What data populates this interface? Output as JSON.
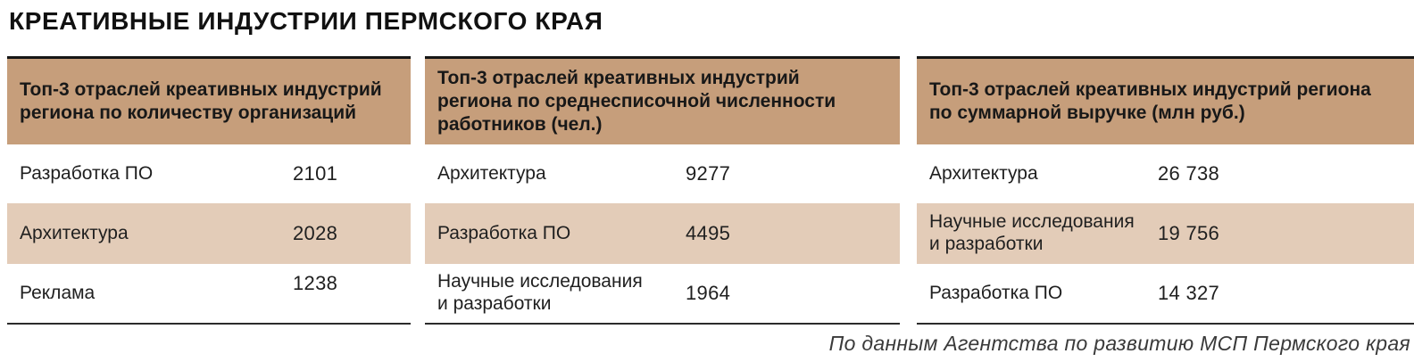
{
  "title": "КРЕАТИВНЫЕ ИНДУСТРИИ ПЕРМСКОГО КРАЯ",
  "colors": {
    "header_band": "#c69e7b",
    "highlight_row": "#e3ccb8",
    "rule_line": "#161616",
    "text": "#1c1c1c"
  },
  "panels": [
    {
      "header": "Топ-3 отраслей креативных индустрий\nрегиона по количеству организаций",
      "rows": [
        {
          "label": "Разработка ПО",
          "value": "2101",
          "highlighted": false
        },
        {
          "label": "Архитектура",
          "value": "2028",
          "highlighted": true
        },
        {
          "label": "Реклама",
          "value": "1238",
          "highlighted": false
        }
      ]
    },
    {
      "header": "Топ-3 отраслей креативных индустрий\nрегиона по среднесписочной численности\nработников (чел.)",
      "rows": [
        {
          "label": "Архитектура",
          "value": "9277",
          "highlighted": false
        },
        {
          "label": "Разработка ПО",
          "value": "4495",
          "highlighted": true
        },
        {
          "label": "Научные исследования\nи разработки",
          "value": "1964",
          "highlighted": false
        }
      ]
    },
    {
      "header": "Топ-3 отраслей креативных индустрий региона\nпо суммарной выручке (млн руб.)",
      "rows": [
        {
          "label": "Архитектура",
          "value": "26 738",
          "highlighted": false
        },
        {
          "label": "Научные исследования\nи разработки",
          "value": "19 756",
          "highlighted": true
        },
        {
          "label": "Разработка ПО",
          "value": "14 327",
          "highlighted": false
        }
      ]
    }
  ],
  "source_note": "По данным Агентства по развитию МСП Пермского края",
  "chart_data": [
    {
      "type": "table",
      "title": "Топ-3 отраслей креативных индустрий региона по количеству организаций",
      "categories": [
        "Разработка ПО",
        "Архитектура",
        "Реклама"
      ],
      "values": [
        2101,
        2028,
        1238
      ]
    },
    {
      "type": "table",
      "title": "Топ-3 отраслей креативных индустрий региона по среднесписочной численности работников (чел.)",
      "categories": [
        "Архитектура",
        "Разработка ПО",
        "Научные исследования и разработки"
      ],
      "values": [
        9277,
        4495,
        1964
      ]
    },
    {
      "type": "table",
      "title": "Топ-3 отраслей креативных индустрий региона по суммарной выручке (млн руб.)",
      "categories": [
        "Архитектура",
        "Научные исследования и разработки",
        "Разработка ПО"
      ],
      "values": [
        26738,
        19756,
        14327
      ]
    }
  ]
}
